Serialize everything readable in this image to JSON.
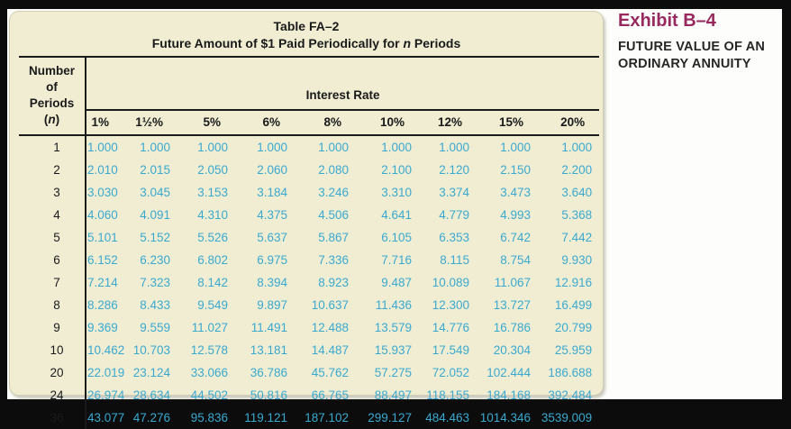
{
  "exhibit": {
    "label": "Exhibit B–4",
    "caption": "FUTURE VALUE OF AN ORDINARY ANNUITY"
  },
  "chart_data": {
    "type": "table",
    "title": "Table FA–2",
    "subtitle_pre": "Future Amount of $1 Paid Periodically for ",
    "subtitle_var": "n",
    "subtitle_post": " Periods",
    "row_label_lines": [
      "Number",
      "of",
      "Periods"
    ],
    "row_label_var_open": "(",
    "row_label_var": "n",
    "row_label_var_close": ")",
    "group_header": "Interest Rate",
    "columns": [
      "1%",
      "1½%",
      "5%",
      "6%",
      "8%",
      "10%",
      "12%",
      "15%",
      "20%"
    ],
    "rows": [
      {
        "n": "1",
        "values": [
          "1.000",
          "1.000",
          "1.000",
          "1.000",
          "1.000",
          "1.000",
          "1.000",
          "1.000",
          "1.000"
        ]
      },
      {
        "n": "2",
        "values": [
          "2.010",
          "2.015",
          "2.050",
          "2.060",
          "2.080",
          "2.100",
          "2.120",
          "2.150",
          "2.200"
        ]
      },
      {
        "n": "3",
        "values": [
          "3.030",
          "3.045",
          "3.153",
          "3.184",
          "3.246",
          "3.310",
          "3.374",
          "3.473",
          "3.640"
        ]
      },
      {
        "n": "4",
        "values": [
          "4.060",
          "4.091",
          "4.310",
          "4.375",
          "4.506",
          "4.641",
          "4.779",
          "4.993",
          "5.368"
        ]
      },
      {
        "n": "5",
        "values": [
          "5.101",
          "5.152",
          "5.526",
          "5.637",
          "5.867",
          "6.105",
          "6.353",
          "6.742",
          "7.442"
        ]
      },
      {
        "n": "6",
        "values": [
          "6.152",
          "6.230",
          "6.802",
          "6.975",
          "7.336",
          "7.716",
          "8.115",
          "8.754",
          "9.930"
        ]
      },
      {
        "n": "7",
        "values": [
          "7.214",
          "7.323",
          "8.142",
          "8.394",
          "8.923",
          "9.487",
          "10.089",
          "11.067",
          "12.916"
        ]
      },
      {
        "n": "8",
        "values": [
          "8.286",
          "8.433",
          "9.549",
          "9.897",
          "10.637",
          "11.436",
          "12.300",
          "13.727",
          "16.499"
        ]
      },
      {
        "n": "9",
        "values": [
          "9.369",
          "9.559",
          "11.027",
          "11.491",
          "12.488",
          "13.579",
          "14.776",
          "16.786",
          "20.799"
        ]
      },
      {
        "n": "10",
        "values": [
          "10.462",
          "10.703",
          "12.578",
          "13.181",
          "14.487",
          "15.937",
          "17.549",
          "20.304",
          "25.959"
        ]
      },
      {
        "n": "20",
        "values": [
          "22.019",
          "23.124",
          "33.066",
          "36.786",
          "45.762",
          "57.275",
          "72.052",
          "102.444",
          "186.688"
        ]
      },
      {
        "n": "24",
        "values": [
          "26.974",
          "28.634",
          "44.502",
          "50.816",
          "66.765",
          "88.497",
          "118.155",
          "184.168",
          "392.484"
        ]
      },
      {
        "n": "36",
        "values": [
          "43.077",
          "47.276",
          "95.836",
          "119.121",
          "187.102",
          "299.127",
          "484.463",
          "1014.346",
          "3539.009"
        ]
      }
    ]
  },
  "colors": {
    "data_text": "#3aa9d0",
    "exhibit_heading": "#97295f",
    "caption_text": "#262626",
    "panel_bg": "#f1edd3",
    "rule": "#1a1a1a",
    "ink": "#1a1a1a",
    "frame": "#0c0c0c",
    "page_bg": "#fdfdfb"
  }
}
